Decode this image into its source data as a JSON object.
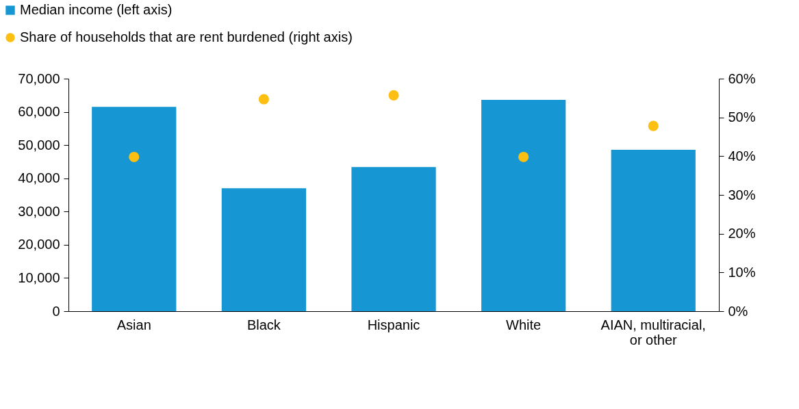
{
  "chart_data": {
    "type": "bar",
    "categories": [
      "Asian",
      "Black",
      "Hispanic",
      "White",
      "AIAN, multiracial,\nor other"
    ],
    "series": [
      {
        "name": "Median income (left axis)",
        "color": "#1696d2",
        "values": [
          61500,
          37000,
          43400,
          63600,
          48600
        ]
      },
      {
        "name": "Share of households that are rent burdened (right axis)",
        "type": "scatter",
        "axis": "y2",
        "color": "#fdbf11",
        "values": [
          39.8,
          54.7,
          55.7,
          39.8,
          47.8
        ]
      }
    ],
    "ylim": [
      0,
      70000
    ],
    "yticks": [
      {
        "value": 0,
        "label": "0"
      },
      {
        "value": 10000,
        "label": "10,000"
      },
      {
        "value": 20000,
        "label": "20,000"
      },
      {
        "value": 30000,
        "label": "30,000"
      },
      {
        "value": 40000,
        "label": "40,000"
      },
      {
        "value": 50000,
        "label": "50,000"
      },
      {
        "value": 60000,
        "label": "60,000"
      },
      {
        "value": 70000,
        "label": "70,000"
      }
    ],
    "y2lim": [
      0,
      60
    ],
    "y2ticks": [
      {
        "value": 0,
        "label": "0%"
      },
      {
        "value": 10,
        "label": "10%"
      },
      {
        "value": 20,
        "label": "20%"
      },
      {
        "value": 30,
        "label": "30%"
      },
      {
        "value": 40,
        "label": "40%"
      },
      {
        "value": 50,
        "label": "50%"
      },
      {
        "value": 60,
        "label": "60%"
      }
    ],
    "grid": false,
    "legend": "top left",
    "marker": "circle"
  }
}
